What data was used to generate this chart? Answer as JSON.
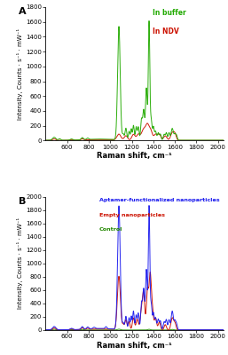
{
  "panel_A": {
    "label": "A",
    "xlim": [
      400,
      2050
    ],
    "ylim": [
      0,
      1800
    ],
    "yticks": [
      0,
      200,
      400,
      600,
      800,
      1000,
      1200,
      1400,
      1600,
      1800
    ],
    "xticks": [
      600,
      800,
      1000,
      1200,
      1400,
      1600,
      1800,
      2000
    ],
    "xlabel": "Raman shift, cm⁻¹",
    "ylabel": "Intensity, Counts · s⁻¹ · mW⁻¹",
    "legend": [
      {
        "label": "In buffer",
        "color": "#22aa00"
      },
      {
        "label": "In NDV",
        "color": "#cc1100"
      }
    ]
  },
  "panel_B": {
    "label": "B",
    "xlim": [
      400,
      2050
    ],
    "ylim": [
      0,
      2000
    ],
    "yticks": [
      0,
      200,
      400,
      600,
      800,
      1000,
      1200,
      1400,
      1600,
      1800,
      2000
    ],
    "xticks": [
      600,
      800,
      1000,
      1200,
      1400,
      1600,
      1800,
      2000
    ],
    "xlabel": "Raman shift, cm⁻¹",
    "ylabel": "Intensity, Counts · s⁻¹ · mW⁻¹",
    "legend": [
      {
        "label": "Aptamer-functionalized nanoparticles",
        "color": "#1a1aee"
      },
      {
        "label": "Empty nanoparticles",
        "color": "#cc1100"
      },
      {
        "label": "Control",
        "color": "#228800"
      }
    ]
  },
  "background": "#ffffff"
}
